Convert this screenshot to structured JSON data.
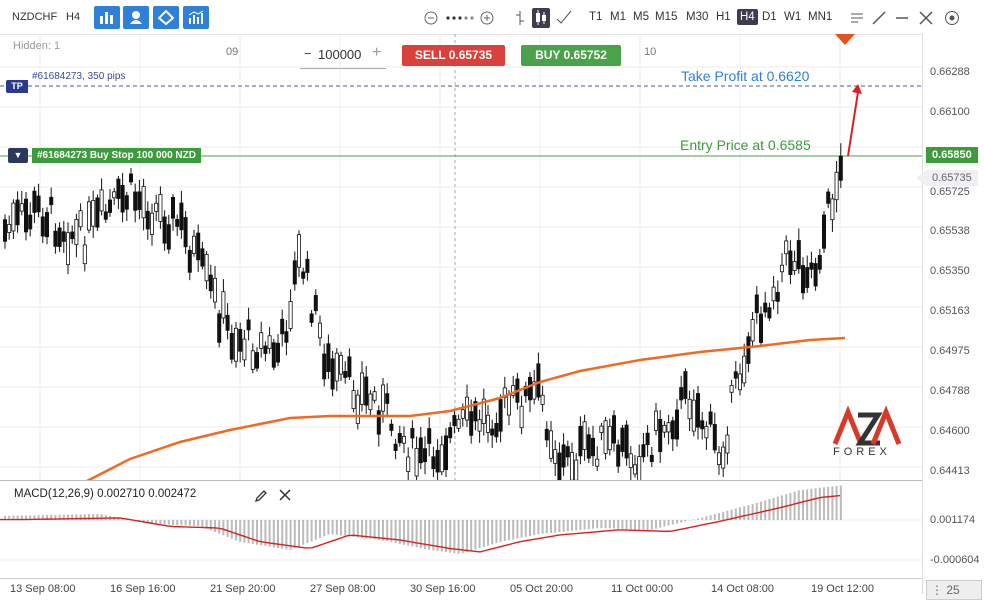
{
  "toolbar": {
    "symbol": "NZDCHF",
    "timeframe": "H4",
    "timeframes": [
      "T1",
      "M1",
      "M5",
      "M15",
      "M30",
      "H1",
      "H4",
      "D1",
      "W1",
      "MN1"
    ],
    "active_timeframe": "H4"
  },
  "chart": {
    "hidden_label": "Hidden: 1",
    "top_ticks": [
      "09",
      "10"
    ],
    "quantity": "100000",
    "sell_label": "SELL 0.65735",
    "buy_label": "BUY 0.65752",
    "tp_tag": "TP",
    "tp_info": "#61684273, 350 pips",
    "order_tag": "#61684273 Buy Stop 100 000 NZD",
    "take_profit_annotation": "Take Profit at 0.6620",
    "entry_annotation": "Entry Price at 0.6585",
    "watermark_top": "AZA",
    "watermark_bottom": "FOREX",
    "ma_color": "#f06a22",
    "up_color": "#ffffff",
    "down_color": "#111111"
  },
  "price_axis": {
    "labels": [
      "0.66288",
      "0.66100",
      "0.65725",
      "0.65538",
      "0.65350",
      "0.65163",
      "0.64975",
      "0.64788",
      "0.64600",
      "0.64413"
    ],
    "entry_price": "0.65850",
    "current_price": "0.65735"
  },
  "macd": {
    "label": "MACD(12,26,9) 0.002710 0.002472",
    "axis_labels": [
      "0.001174",
      "-0.000604"
    ]
  },
  "time_axis": {
    "labels": [
      "13 Sep 08:00",
      "16 Sep 16:00",
      "21 Sep 20:00",
      "27 Sep 08:00",
      "30 Sep 16:00",
      "05 Oct 20:00",
      "11 Oct 00:00",
      "14 Oct 08:00",
      "19 Oct 12:00"
    ]
  },
  "zoom": {
    "value": "25"
  }
}
